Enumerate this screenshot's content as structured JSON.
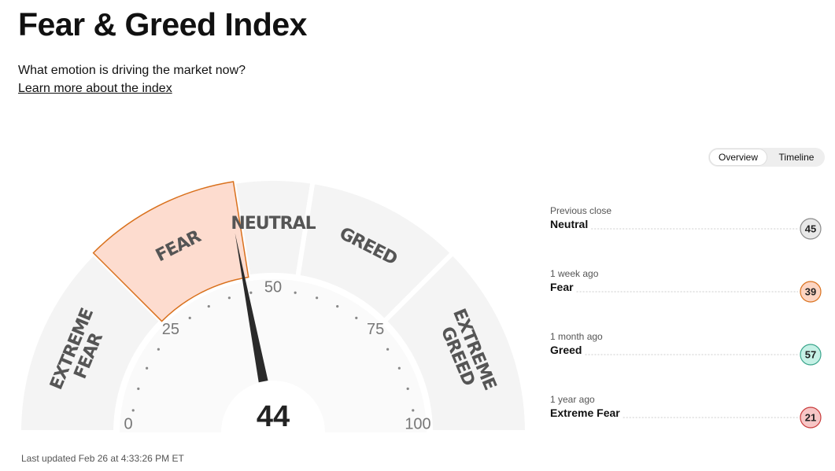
{
  "header": {
    "title": "Fear & Greed Index",
    "subtitle": "What emotion is driving the market now?",
    "link": "Learn more about the index"
  },
  "tabs": [
    "Overview",
    "Timeline"
  ],
  "gauge": {
    "value": 44,
    "min": 0,
    "max": 100,
    "ticks": [
      0,
      25,
      50,
      75,
      100
    ],
    "segments": [
      {
        "lines": [
          "EXTREME",
          "FEAR"
        ],
        "from": 0,
        "to": 25
      },
      {
        "lines": [
          "FEAR"
        ],
        "from": 25,
        "to": 45
      },
      {
        "lines": [
          "NEUTRAL"
        ],
        "from": 45,
        "to": 55
      },
      {
        "lines": [
          "GREED"
        ],
        "from": 55,
        "to": 75
      },
      {
        "lines": [
          "EXTREME",
          "GREED"
        ],
        "from": 75,
        "to": 100
      }
    ],
    "active_fill": "#fddccf",
    "active_stroke": "#d9711d",
    "fill": "#f4f4f4"
  },
  "history": [
    {
      "when": "Previous close",
      "rating": "Neutral",
      "value": 45,
      "fill": "#e8e8e8",
      "stroke": "#8a8a8a"
    },
    {
      "when": "1 week ago",
      "rating": "Fear",
      "value": 39,
      "fill": "#fdd5c2",
      "stroke": "#d9711d"
    },
    {
      "when": "1 month ago",
      "rating": "Greed",
      "value": 57,
      "fill": "#c6f1e6",
      "stroke": "#3aa58c"
    },
    {
      "when": "1 year ago",
      "rating": "Extreme Fear",
      "value": 21,
      "fill": "#f7c6c6",
      "stroke": "#c83a3a"
    }
  ],
  "footer": "Last updated Feb 26 at 4:33:26 PM ET"
}
